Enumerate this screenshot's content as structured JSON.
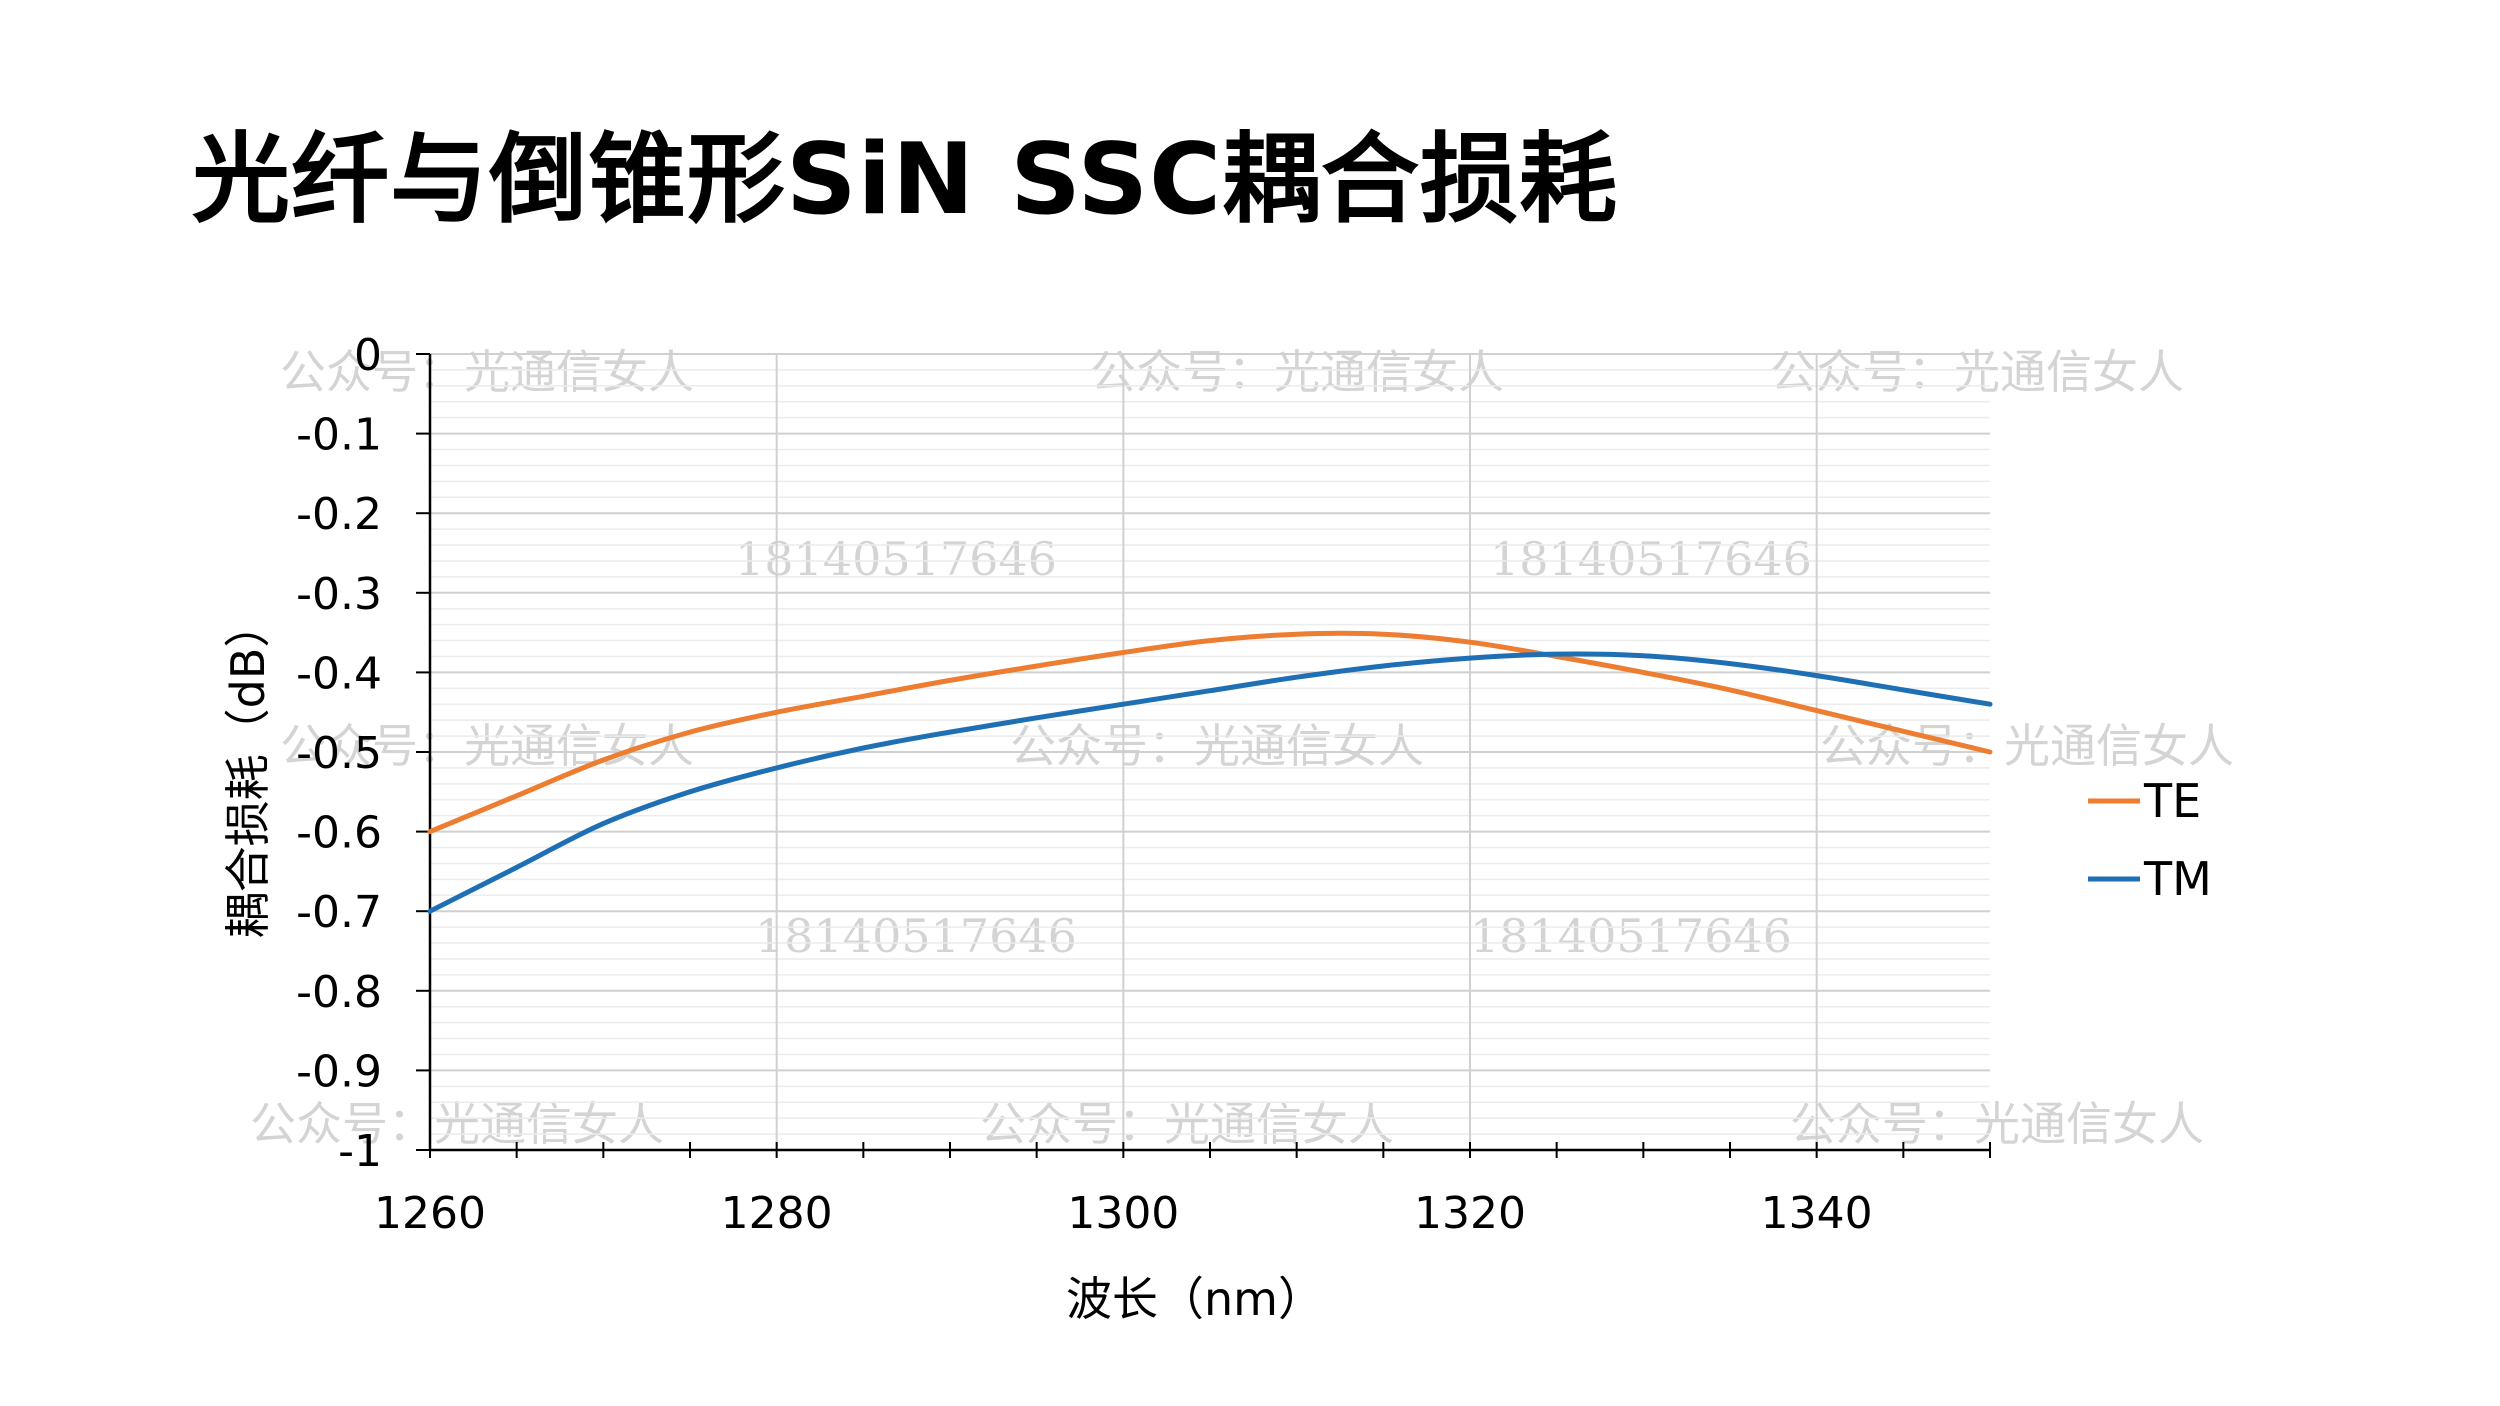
{
  "title": "光纤与倒锥形SiN SSC耦合损耗",
  "watermarks": {
    "account": "公众号：光通信女人",
    "phone": "18140517646"
  },
  "chart_data": {
    "type": "line",
    "xlabel": "波长（nm）",
    "ylabel": "耦合损耗（dB）",
    "xlim": [
      1260,
      1350
    ],
    "ylim": [
      -1,
      0
    ],
    "x_ticks": [
      "1260",
      "1280",
      "1300",
      "1320",
      "1340"
    ],
    "y_ticks": [
      "0",
      "-0.1",
      "-0.2",
      "-0.3",
      "-0.4",
      "-0.5",
      "-0.6",
      "-0.7",
      "-0.8",
      "-0.9",
      "-1"
    ],
    "grid": true,
    "legend_position": "right",
    "series": [
      {
        "name": "TE",
        "color": "#ED7D31",
        "x": [
          1260,
          1265,
          1270,
          1275,
          1280,
          1285,
          1290,
          1295,
          1300,
          1305,
          1310,
          1315,
          1320,
          1325,
          1330,
          1335,
          1340,
          1345,
          1350
        ],
        "y": [
          -0.6,
          -0.555,
          -0.51,
          -0.475,
          -0.45,
          -0.43,
          -0.41,
          -0.392,
          -0.375,
          -0.36,
          -0.352,
          -0.352,
          -0.362,
          -0.38,
          -0.4,
          -0.422,
          -0.448,
          -0.474,
          -0.5
        ]
      },
      {
        "name": "TM",
        "color": "#1F6FB5",
        "x": [
          1260,
          1265,
          1270,
          1275,
          1280,
          1285,
          1290,
          1295,
          1300,
          1305,
          1310,
          1315,
          1320,
          1325,
          1330,
          1335,
          1340,
          1345,
          1350
        ],
        "y": [
          -0.7,
          -0.645,
          -0.59,
          -0.55,
          -0.52,
          -0.495,
          -0.475,
          -0.457,
          -0.44,
          -0.423,
          -0.406,
          -0.392,
          -0.382,
          -0.377,
          -0.379,
          -0.389,
          -0.404,
          -0.422,
          -0.44
        ]
      }
    ]
  }
}
